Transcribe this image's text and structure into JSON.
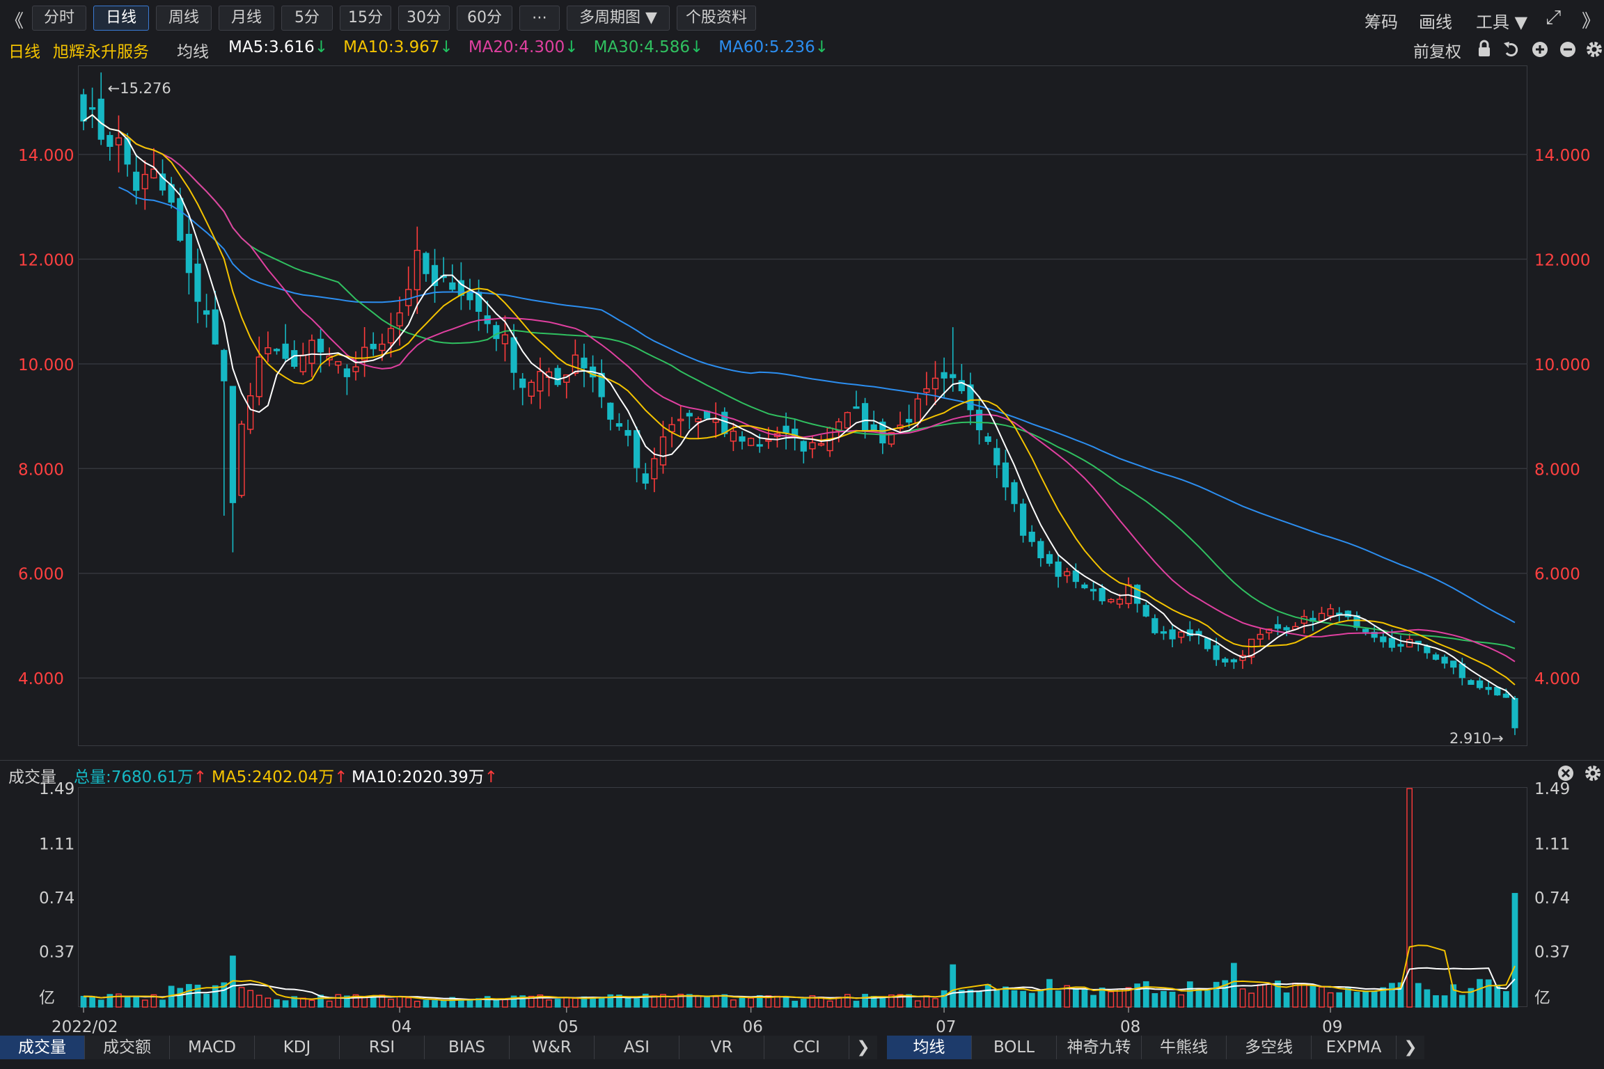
{
  "toolbar": {
    "left_arrow": "《",
    "right_arrow": "》",
    "periods": [
      "分时",
      "日线",
      "周线",
      "月线",
      "5分",
      "15分",
      "30分",
      "60分",
      "⋯",
      "多周期图 ▼",
      "个股资料"
    ],
    "active_index": 1,
    "right_items": [
      "筹码",
      "画线",
      "工具 ▼"
    ],
    "fullscreen_icon": "⤢"
  },
  "info": {
    "period": "日线",
    "stock_name": "旭辉永升服务",
    "ma_title": "均线",
    "ma": [
      {
        "label": "MA5:3.616",
        "color": "#ffffff",
        "dir": "down"
      },
      {
        "label": "MA10:3.967",
        "color": "#f5c400",
        "dir": "down"
      },
      {
        "label": "MA20:4.300",
        "color": "#e040a0",
        "dir": "down"
      },
      {
        "label": "MA30:4.586",
        "color": "#30c060",
        "dir": "down"
      },
      {
        "label": "MA60:5.236",
        "color": "#2c8ef0",
        "dir": "down"
      }
    ],
    "restore": "前复权"
  },
  "volume_info": {
    "title": "成交量",
    "total": "总量:7680.61万",
    "ma5": "MA5:2402.04万",
    "ma10": "MA10:2020.39万"
  },
  "price_axis": {
    "labels": [
      "14.000",
      "12.000",
      "10.000",
      "8.000",
      "6.000",
      "4.000"
    ],
    "values": [
      14,
      12,
      10,
      8,
      6,
      4
    ]
  },
  "volume_axis": {
    "labels": [
      "1.49",
      "1.11",
      "0.74",
      "0.37",
      "亿"
    ],
    "values": [
      1.49,
      1.11,
      0.74,
      0.37,
      0
    ]
  },
  "date_labels": [
    "2022/02",
    "04",
    "05",
    "06",
    "07",
    "08",
    "09"
  ],
  "high_mark": "←15.276",
  "low_mark": "2.910→",
  "bottom_tabs_left": [
    "成交量",
    "成交额",
    "MACD",
    "KDJ",
    "RSI",
    "BIAS",
    "W&R",
    "ASI",
    "VR",
    "CCI"
  ],
  "bottom_tabs_right": [
    "均线",
    "BOLL",
    "神奇九转",
    "牛熊线",
    "多空线",
    "EXPMA"
  ],
  "more_arrow": "❯",
  "chart_data": {
    "type": "candlestick",
    "title": "旭辉永升服务 日线",
    "ylim": [
      2.7,
      15.7
    ],
    "volume_ylim": [
      0,
      1.49
    ],
    "volume_unit": "亿",
    "colors": {
      "up": "#ff3b3b",
      "down": "#16b8c4",
      "ma5": "#ffffff",
      "ma10": "#f5c400",
      "ma20": "#e040a0",
      "ma30": "#30c060",
      "ma60": "#2c8ef0"
    },
    "month_starts": [
      {
        "label": "2022/02",
        "index": 0
      },
      {
        "label": "04",
        "index": 36
      },
      {
        "label": "05",
        "index": 55
      },
      {
        "label": "06",
        "index": 76
      },
      {
        "label": "07",
        "index": 98
      },
      {
        "label": "08",
        "index": 119
      },
      {
        "label": "09",
        "index": 142
      }
    ],
    "anchors": [
      [
        0,
        14.9
      ],
      [
        2,
        14.4
      ],
      [
        4,
        14.2
      ],
      [
        6,
        13.4
      ],
      [
        8,
        13.6
      ],
      [
        10,
        13.0
      ],
      [
        12,
        11.6
      ],
      [
        14,
        11.0
      ],
      [
        16,
        9.6
      ],
      [
        17,
        7.5
      ],
      [
        18,
        8.8
      ],
      [
        20,
        10.0
      ],
      [
        22,
        10.4
      ],
      [
        24,
        9.8
      ],
      [
        26,
        10.4
      ],
      [
        28,
        10.0
      ],
      [
        30,
        9.8
      ],
      [
        32,
        10.2
      ],
      [
        34,
        10.5
      ],
      [
        36,
        11.0
      ],
      [
        38,
        12.0
      ],
      [
        40,
        11.4
      ],
      [
        42,
        11.6
      ],
      [
        44,
        11.2
      ],
      [
        46,
        10.8
      ],
      [
        48,
        10.4
      ],
      [
        50,
        9.6
      ],
      [
        52,
        9.8
      ],
      [
        54,
        9.6
      ],
      [
        56,
        10.2
      ],
      [
        58,
        9.8
      ],
      [
        60,
        9.0
      ],
      [
        62,
        8.6
      ],
      [
        64,
        7.6
      ],
      [
        65,
        8.2
      ],
      [
        67,
        8.8
      ],
      [
        69,
        9.0
      ],
      [
        71,
        8.9
      ],
      [
        73,
        8.7
      ],
      [
        75,
        8.6
      ],
      [
        77,
        8.5
      ],
      [
        79,
        8.7
      ],
      [
        81,
        8.5
      ],
      [
        83,
        8.4
      ],
      [
        85,
        8.8
      ],
      [
        87,
        9.2
      ],
      [
        89,
        8.8
      ],
      [
        91,
        8.6
      ],
      [
        93,
        8.8
      ],
      [
        95,
        9.2
      ],
      [
        97,
        9.6
      ],
      [
        99,
        9.6
      ],
      [
        101,
        9.2
      ],
      [
        103,
        8.6
      ],
      [
        105,
        7.8
      ],
      [
        107,
        6.8
      ],
      [
        109,
        6.3
      ],
      [
        111,
        6.0
      ],
      [
        113,
        5.9
      ],
      [
        115,
        5.6
      ],
      [
        117,
        5.5
      ],
      [
        119,
        5.7
      ],
      [
        121,
        5.1
      ],
      [
        123,
        4.8
      ],
      [
        125,
        4.8
      ],
      [
        127,
        4.8
      ],
      [
        129,
        4.4
      ],
      [
        131,
        4.3
      ],
      [
        133,
        4.7
      ],
      [
        135,
        4.9
      ],
      [
        137,
        5.0
      ],
      [
        139,
        5.1
      ],
      [
        141,
        5.2
      ],
      [
        143,
        5.3
      ],
      [
        145,
        4.9
      ],
      [
        147,
        4.7
      ],
      [
        149,
        4.6
      ],
      [
        151,
        4.7
      ],
      [
        153,
        4.5
      ],
      [
        155,
        4.3
      ],
      [
        157,
        4.0
      ],
      [
        159,
        3.8
      ],
      [
        161,
        3.7
      ],
      [
        162,
        3.6
      ],
      [
        163,
        3.05
      ]
    ],
    "ma_end_values": {
      "ma5": 3.616,
      "ma10": 3.967,
      "ma20": 4.3,
      "ma30": 4.586,
      "ma60": 5.236
    },
    "high": {
      "index": 1,
      "value": 15.276
    },
    "low": {
      "index": 163,
      "value": 2.91
    },
    "volume_spikes": [
      {
        "index": 151,
        "value": 1.49
      },
      {
        "index": 163,
        "value": 0.77
      },
      {
        "index": 17,
        "value": 0.34
      },
      {
        "index": 99,
        "value": 0.28
      },
      {
        "index": 131,
        "value": 0.29
      }
    ]
  }
}
